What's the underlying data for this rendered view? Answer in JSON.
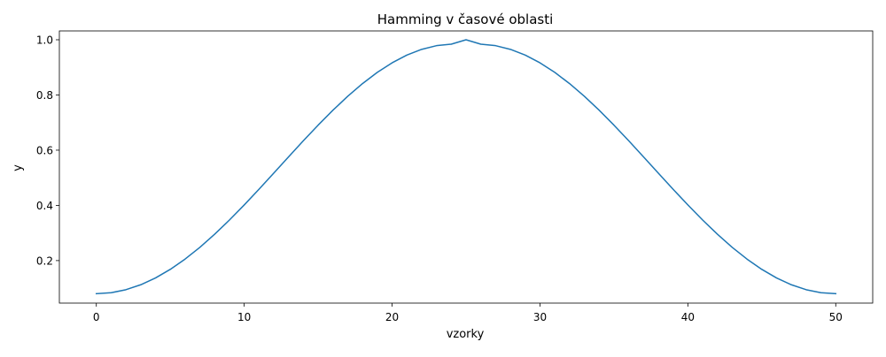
{
  "chart_data": {
    "type": "line",
    "title": "Hamming v časové oblasti",
    "xlabel": "vzorky",
    "ylabel": "y",
    "xlim": [
      -2.5,
      52.5
    ],
    "ylim": [
      0.046,
      1.032
    ],
    "xticks": [
      0,
      10,
      20,
      30,
      40,
      50
    ],
    "xtick_labels": [
      "0",
      "10",
      "20",
      "30",
      "40",
      "50"
    ],
    "yticks": [
      0.2,
      0.4,
      0.6,
      0.8,
      1.0
    ],
    "ytick_labels": [
      "0.2",
      "0.4",
      "0.6",
      "0.8",
      "1.0"
    ],
    "grid": false,
    "series": [
      {
        "color": "#1f77b4",
        "x": [
          0,
          1,
          2,
          3,
          4,
          5,
          6,
          7,
          8,
          9,
          10,
          11,
          12,
          13,
          14,
          15,
          16,
          17,
          18,
          19,
          20,
          21,
          22,
          23,
          24,
          25,
          26,
          27,
          28,
          29,
          30,
          31,
          32,
          33,
          34,
          35,
          36,
          37,
          38,
          39,
          40,
          41,
          42,
          43,
          44,
          45,
          46,
          47,
          48,
          49,
          50
        ],
        "values": [
          0.08,
          0.0836,
          0.0945,
          0.1124,
          0.1371,
          0.1682,
          0.2054,
          0.248,
          0.2954,
          0.3469,
          0.4016,
          0.4586,
          0.517,
          0.5759,
          0.6341,
          0.6908,
          0.7448,
          0.7952,
          0.8412,
          0.8819,
          0.9165,
          0.9445,
          0.9653,
          0.9786,
          0.984,
          1.0,
          0.984,
          0.9786,
          0.9653,
          0.9445,
          0.9165,
          0.8819,
          0.8412,
          0.7952,
          0.7448,
          0.6908,
          0.6341,
          0.5759,
          0.517,
          0.4586,
          0.4016,
          0.3469,
          0.2954,
          0.248,
          0.2054,
          0.1682,
          0.1371,
          0.1124,
          0.0945,
          0.0836,
          0.08
        ]
      }
    ]
  }
}
